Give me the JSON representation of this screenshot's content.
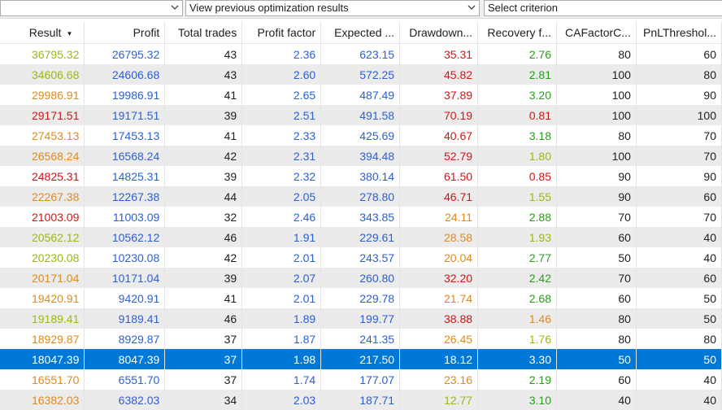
{
  "toolbar": {
    "dropdown1": "",
    "dropdown2": "View previous optimization results",
    "dropdown3": "Select criterion"
  },
  "columns": [
    "Result",
    "Profit",
    "Total trades",
    "Profit factor",
    "Expected ...",
    "Drawdown...",
    "Recovery f...",
    "CAFactorC...",
    "PnLThreshol..."
  ],
  "colors": {
    "green": "#9ab814",
    "darkgreen": "#2a9d1e",
    "orange": "#e08a1a",
    "red": "#d61414",
    "blue": "#2c5fd4",
    "selection": "#0078d7"
  },
  "rows": [
    {
      "result": "36795.32",
      "rc": "green",
      "profit": "26795.32",
      "trades": "43",
      "pf": "2.36",
      "exp": "623.15",
      "dd": "35.31",
      "ddc": "red",
      "rf": "2.76",
      "rfc": "darkgreen",
      "ca": "80",
      "pnl": "60"
    },
    {
      "result": "34606.68",
      "rc": "green",
      "profit": "24606.68",
      "trades": "43",
      "pf": "2.60",
      "exp": "572.25",
      "dd": "45.82",
      "ddc": "red",
      "rf": "2.81",
      "rfc": "darkgreen",
      "ca": "100",
      "pnl": "80"
    },
    {
      "result": "29986.91",
      "rc": "orange",
      "profit": "19986.91",
      "trades": "41",
      "pf": "2.65",
      "exp": "487.49",
      "dd": "37.89",
      "ddc": "red",
      "rf": "3.20",
      "rfc": "darkgreen",
      "ca": "100",
      "pnl": "90"
    },
    {
      "result": "29171.51",
      "rc": "red",
      "profit": "19171.51",
      "trades": "39",
      "pf": "2.51",
      "exp": "491.58",
      "dd": "70.19",
      "ddc": "red",
      "rf": "0.81",
      "rfc": "red",
      "ca": "100",
      "pnl": "100"
    },
    {
      "result": "27453.13",
      "rc": "orange",
      "profit": "17453.13",
      "trades": "41",
      "pf": "2.33",
      "exp": "425.69",
      "dd": "40.67",
      "ddc": "red",
      "rf": "3.18",
      "rfc": "darkgreen",
      "ca": "80",
      "pnl": "70"
    },
    {
      "result": "26568.24",
      "rc": "orange",
      "profit": "16568.24",
      "trades": "42",
      "pf": "2.31",
      "exp": "394.48",
      "dd": "52.79",
      "ddc": "red",
      "rf": "1.80",
      "rfc": "green",
      "ca": "100",
      "pnl": "70"
    },
    {
      "result": "24825.31",
      "rc": "red",
      "profit": "14825.31",
      "trades": "39",
      "pf": "2.32",
      "exp": "380.14",
      "dd": "61.50",
      "ddc": "red",
      "rf": "0.85",
      "rfc": "red",
      "ca": "90",
      "pnl": "90"
    },
    {
      "result": "22267.38",
      "rc": "orange",
      "profit": "12267.38",
      "trades": "44",
      "pf": "2.05",
      "exp": "278.80",
      "dd": "46.71",
      "ddc": "red",
      "rf": "1.55",
      "rfc": "green",
      "ca": "90",
      "pnl": "60"
    },
    {
      "result": "21003.09",
      "rc": "red",
      "profit": "11003.09",
      "trades": "32",
      "pf": "2.46",
      "exp": "343.85",
      "dd": "24.11",
      "ddc": "orange",
      "rf": "2.88",
      "rfc": "darkgreen",
      "ca": "70",
      "pnl": "70"
    },
    {
      "result": "20562.12",
      "rc": "green",
      "profit": "10562.12",
      "trades": "46",
      "pf": "1.91",
      "exp": "229.61",
      "dd": "28.58",
      "ddc": "orange",
      "rf": "1.93",
      "rfc": "green",
      "ca": "60",
      "pnl": "40"
    },
    {
      "result": "20230.08",
      "rc": "green",
      "profit": "10230.08",
      "trades": "42",
      "pf": "2.01",
      "exp": "243.57",
      "dd": "20.04",
      "ddc": "orange",
      "rf": "2.77",
      "rfc": "darkgreen",
      "ca": "50",
      "pnl": "40"
    },
    {
      "result": "20171.04",
      "rc": "orange",
      "profit": "10171.04",
      "trades": "39",
      "pf": "2.07",
      "exp": "260.80",
      "dd": "32.20",
      "ddc": "red",
      "rf": "2.42",
      "rfc": "darkgreen",
      "ca": "70",
      "pnl": "60"
    },
    {
      "result": "19420.91",
      "rc": "orange",
      "profit": "9420.91",
      "trades": "41",
      "pf": "2.01",
      "exp": "229.78",
      "dd": "21.74",
      "ddc": "orange",
      "rf": "2.68",
      "rfc": "darkgreen",
      "ca": "60",
      "pnl": "50"
    },
    {
      "result": "19189.41",
      "rc": "green",
      "profit": "9189.41",
      "trades": "46",
      "pf": "1.89",
      "exp": "199.77",
      "dd": "38.88",
      "ddc": "red",
      "rf": "1.46",
      "rfc": "orange",
      "ca": "80",
      "pnl": "50"
    },
    {
      "result": "18929.87",
      "rc": "orange",
      "profit": "8929.87",
      "trades": "37",
      "pf": "1.87",
      "exp": "241.35",
      "dd": "26.45",
      "ddc": "orange",
      "rf": "1.76",
      "rfc": "green",
      "ca": "80",
      "pnl": "80"
    },
    {
      "result": "18047.39",
      "rc": "orange",
      "profit": "8047.39",
      "trades": "37",
      "pf": "1.98",
      "exp": "217.50",
      "dd": "18.12",
      "ddc": "orange",
      "rf": "3.30",
      "rfc": "darkgreen",
      "ca": "50",
      "pnl": "50",
      "selected": true
    },
    {
      "result": "16551.70",
      "rc": "orange",
      "profit": "6551.70",
      "trades": "37",
      "pf": "1.74",
      "exp": "177.07",
      "dd": "23.16",
      "ddc": "orange",
      "rf": "2.19",
      "rfc": "darkgreen",
      "ca": "60",
      "pnl": "40"
    },
    {
      "result": "16382.03",
      "rc": "orange",
      "profit": "6382.03",
      "trades": "34",
      "pf": "2.03",
      "exp": "187.71",
      "dd": "12.77",
      "ddc": "green",
      "rf": "3.10",
      "rfc": "darkgreen",
      "ca": "40",
      "pnl": "40"
    }
  ]
}
